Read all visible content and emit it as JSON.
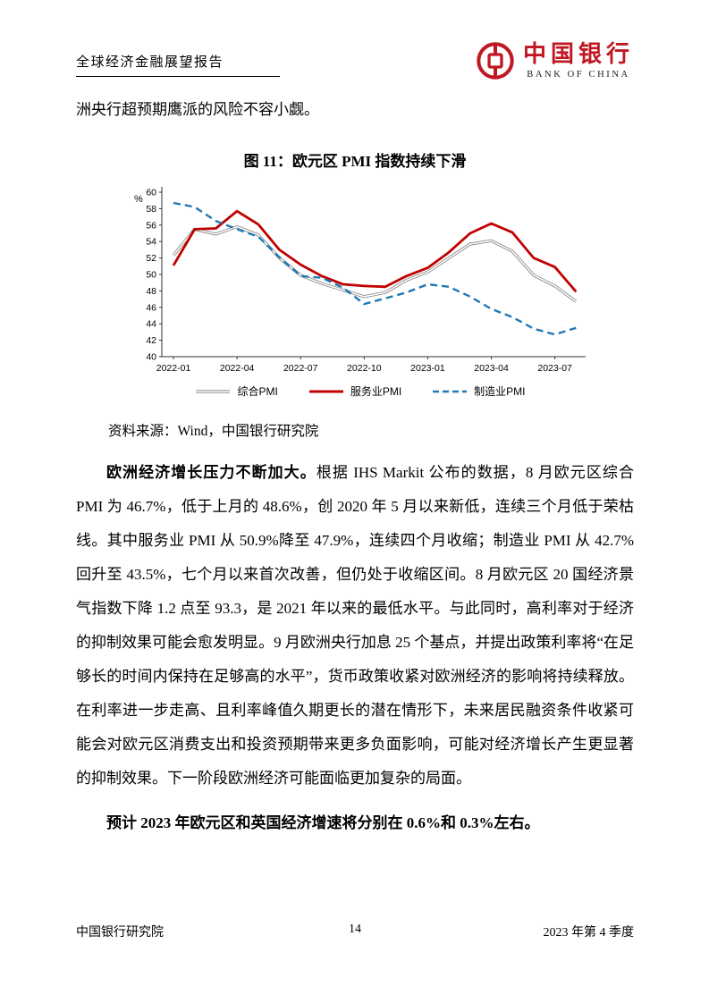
{
  "header": {
    "report_title": "全球经济金融展望报告",
    "logo": {
      "name_cn": "中国银行",
      "name_en": "BANK OF CHINA",
      "color": "#c01823"
    }
  },
  "intro_line": "洲央行超预期鹰派的风险不容小觑。",
  "figure": {
    "title": "图 11：欧元区 PMI 指数持续下滑",
    "source": "资料来源：Wind，中国银行研究院"
  },
  "chart_data": {
    "type": "line",
    "title": "欧元区 PMI 指数持续下滑",
    "xlabel": "",
    "ylabel": "%",
    "ylim": [
      40,
      60
    ],
    "ytick_step": 2,
    "grid": false,
    "legend_position": "bottom",
    "x_labels": [
      "2022-01",
      "2022-04",
      "2022-07",
      "2022-10",
      "2023-01",
      "2023-04",
      "2023-07"
    ],
    "x_monthly": [
      "2022-01",
      "2022-02",
      "2022-03",
      "2022-04",
      "2022-05",
      "2022-06",
      "2022-07",
      "2022-08",
      "2022-09",
      "2022-10",
      "2022-11",
      "2022-12",
      "2023-01",
      "2023-02",
      "2023-03",
      "2023-04",
      "2023-05",
      "2023-06",
      "2023-07",
      "2023-08"
    ],
    "series": [
      {
        "name": "综合PMI",
        "color": "#7f7f7f",
        "style": "double-thin",
        "values": [
          52.3,
          55.5,
          54.9,
          55.8,
          54.8,
          52.0,
          49.9,
          48.9,
          48.1,
          47.3,
          47.8,
          49.3,
          50.3,
          52.0,
          53.7,
          54.1,
          52.8,
          49.9,
          48.6,
          46.7
        ]
      },
      {
        "name": "服务业PMI",
        "color": "#c00000",
        "style": "solid-thick",
        "values": [
          51.1,
          55.5,
          55.6,
          57.7,
          56.1,
          53.0,
          51.2,
          49.8,
          48.8,
          48.6,
          48.5,
          49.8,
          50.8,
          52.7,
          55.0,
          56.2,
          55.1,
          52.0,
          50.9,
          47.9
        ]
      },
      {
        "name": "制造业PMI",
        "color": "#2079b4",
        "style": "dashed",
        "values": [
          58.7,
          58.2,
          56.5,
          55.5,
          54.6,
          52.1,
          49.8,
          49.6,
          48.4,
          46.4,
          47.1,
          47.8,
          48.8,
          48.5,
          47.3,
          45.8,
          44.8,
          43.4,
          42.7,
          43.5
        ]
      }
    ]
  },
  "paragraphs": {
    "p1_lead": "欧洲经济增长压力不断加大。",
    "p1_text": "根据 IHS Markit 公布的数据，8 月欧元区综合 PMI 为 46.7%，低于上月的 48.6%，创 2020 年 5 月以来新低，连续三个月低于荣枯线。其中服务业 PMI 从 50.9%降至 47.9%，连续四个月收缩；制造业 PMI 从 42.7%回升至 43.5%，七个月以来首次改善，但仍处于收缩区间。8 月欧元区 20 国经济景气指数下降 1.2 点至 93.3，是 2021 年以来的最低水平。与此同时，高利率对于经济的抑制效果可能会愈发明显。9 月欧洲央行加息 25 个基点，并提出政策利率将“在足够长的时间内保持在足够高的水平”，货币政策收紧对欧洲经济的影响将持续释放。在利率进一步走高、且利率峰值久期更长的潜在情形下，未来居民融资条件收紧可能会对欧元区消费支出和投资预期带来更多负面影响，可能对经济增长产生更显著的抑制效果。下一阶段欧洲经济可能面临更加复杂的局面。",
    "p2_bold": "预计 2023 年欧元区和英国经济增速将分别在 0.6%和 0.3%左右。"
  },
  "footer": {
    "left": "中国银行研究院",
    "page": "14",
    "right": "2023 年第 4 季度"
  }
}
